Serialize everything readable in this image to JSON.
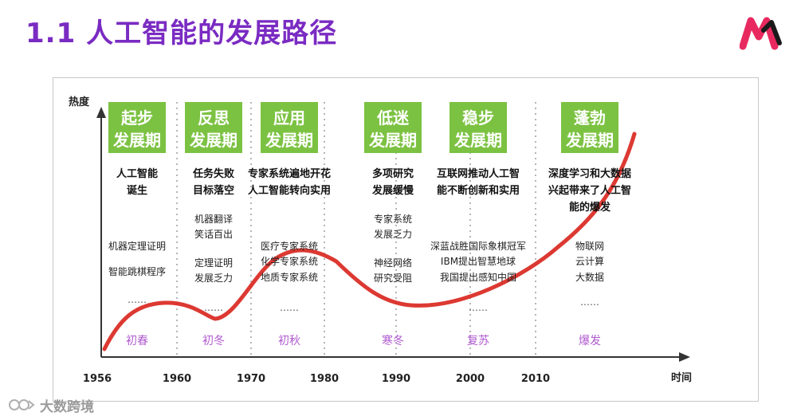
{
  "header": {
    "title": "1.1 人工智能的发展路径"
  },
  "colors": {
    "title": "#7a2bc2",
    "box": "#7cc242",
    "curve": "#d8231c",
    "season": "#b05ad0",
    "dots": "#b5b5b5"
  },
  "axes": {
    "y_label": "热度",
    "x_label": "时间",
    "ticks": [
      "1956",
      "1960",
      "1970",
      "1980",
      "1990",
      "2000",
      "2010"
    ]
  },
  "periods": [
    {
      "box_line1": "起步",
      "box_line2": "发展期",
      "head_line1": "人工智能",
      "head_line2": "诞生",
      "details": [
        "机器定理证明",
        "智能跳棋程序"
      ],
      "ellipsis": "……",
      "season": "初春"
    },
    {
      "box_line1": "反思",
      "box_line2": "发展期",
      "head_line1": "任务失败",
      "head_line2": "目标落空",
      "details": [
        "机器翻译",
        "笑话百出",
        "定理证明",
        "发展乏力"
      ],
      "ellipsis": "……",
      "season": "初冬"
    },
    {
      "box_line1": "应用",
      "box_line2": "发展期",
      "head_line1": "专家系统遍地开花",
      "head_line2": "人工智能转向实用",
      "details": [
        "医疗专家系统",
        "化学专家系统",
        "地质专家系统"
      ],
      "ellipsis": "……",
      "season": "初秋"
    },
    {
      "box_line1": "低迷",
      "box_line2": "发展期",
      "head_line1": "多项研究",
      "head_line2": "发展缓慢",
      "details": [
        "专家系统",
        "发展乏力",
        "神经网络",
        "研究受阻"
      ],
      "ellipsis": "",
      "season": "寒冬"
    },
    {
      "box_line1": "稳步",
      "box_line2": "发展期",
      "head_line1": "互联网推动人工智",
      "head_line2": "能不断创新和实用",
      "details": [
        "深蓝战胜国际象棋冠军",
        "IBM提出智慧地球",
        "我国提出感知中国"
      ],
      "ellipsis": "……",
      "season": "复苏"
    },
    {
      "box_line1": "蓬勃",
      "box_line2": "发展期",
      "head_line1": "深度学习和大数据",
      "head_line2": "兴起带来了人工智",
      "head_line3": "能的爆发",
      "details": [
        "物联网",
        "云计算",
        "大数据"
      ],
      "ellipsis": "……",
      "season": "爆发"
    }
  ],
  "watermark": {
    "text": "大数跨境"
  }
}
